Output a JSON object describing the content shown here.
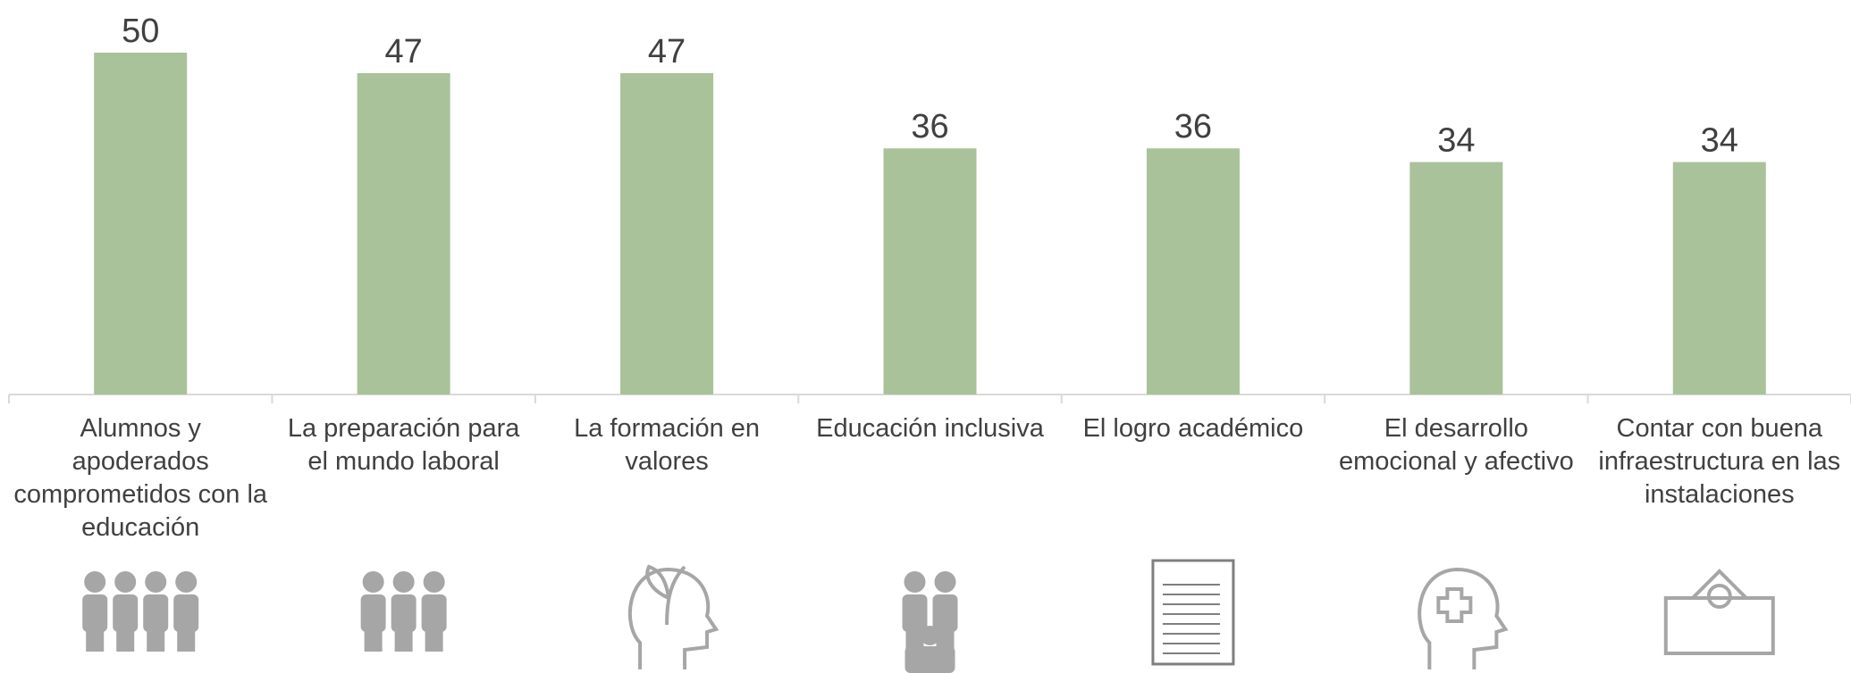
{
  "chart_data": {
    "type": "bar",
    "categories": [
      "Alumnos y apoderados comprometidos con la educación",
      "La preparación para el mundo laboral",
      "La formación en valores",
      "Educación inclusiva",
      "El logro académico",
      "El desarrollo emocional y afectivo",
      "Contar con buena infraestructura en las instalaciones"
    ],
    "values": [
      50,
      47,
      47,
      36,
      36,
      34,
      34
    ],
    "color": "#a9c29a"
  }
}
